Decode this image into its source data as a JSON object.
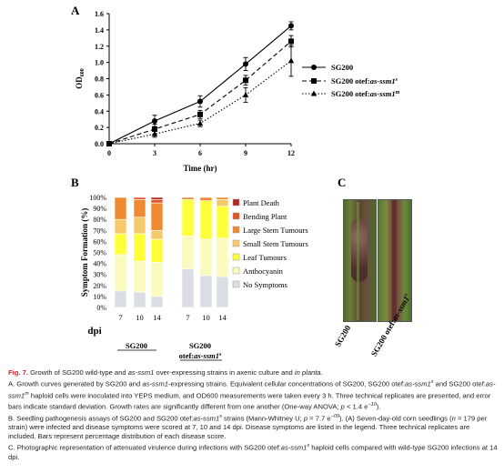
{
  "panels": {
    "a": "A",
    "b": "B",
    "c": "C"
  },
  "colors": {
    "fig_label": "#d2232a"
  },
  "chart_data": [
    {
      "type": "line",
      "ylabel": "OD600",
      "xlabel": "Time (hr)",
      "x": [
        0,
        3,
        6,
        9,
        12
      ],
      "xlim": [
        0,
        12
      ],
      "ylim": [
        0,
        1.6
      ],
      "xticks": [
        "0",
        "3",
        "6",
        "9",
        "12"
      ],
      "yticks": [
        "0.0",
        "0.2",
        "0.4",
        "0.6",
        "0.8",
        "1.0",
        "1.2",
        "1.4",
        "1.6"
      ],
      "grid": false,
      "legend_position": "right",
      "series": [
        {
          "name": "SG200",
          "marker": "circle",
          "line": "solid",
          "values": [
            0.0,
            0.28,
            0.52,
            0.98,
            1.45
          ],
          "error": [
            0.01,
            0.07,
            0.07,
            0.08,
            0.05
          ]
        },
        {
          "name_prefix": "SG200 otef:",
          "name_italic": "as-ssm1",
          "name_sup": "s",
          "marker": "square",
          "line": "dashed",
          "values": [
            0.0,
            0.18,
            0.36,
            0.78,
            1.26
          ],
          "error": [
            0.01,
            0.06,
            0.05,
            0.06,
            0.07
          ]
        },
        {
          "name_prefix": "SG200 otef:",
          "name_italic": "as-ssm1",
          "name_sup": "m",
          "marker": "triangle",
          "line": "dotted",
          "values": [
            0.0,
            0.12,
            0.25,
            0.6,
            1.02
          ],
          "error": [
            0.01,
            0.04,
            0.04,
            0.09,
            0.19
          ]
        }
      ]
    },
    {
      "type": "bar",
      "stacked": true,
      "ylabel": "Symptom Formation (%)",
      "xlabel": "dpi",
      "ylim": [
        0,
        100
      ],
      "yticks": [
        "0%",
        "10%",
        "20%",
        "30%",
        "40%",
        "50%",
        "60%",
        "70%",
        "80%",
        "90%",
        "100%"
      ],
      "categories": [
        "7",
        "10",
        "14",
        "7",
        "10",
        "14"
      ],
      "groups": [
        {
          "label": "SG200",
          "italic": "",
          "sup": ""
        },
        {
          "label": "SG200 otef:",
          "italic": "as-ssm1",
          "sup": "s"
        }
      ],
      "legend_position": "right",
      "series": [
        {
          "name": "No Symptoms",
          "color": "#dadde3",
          "values": [
            15,
            14,
            10,
            35,
            29,
            28
          ]
        },
        {
          "name": "Anthocyanin",
          "color": "#fbfbbe",
          "values": [
            33,
            28,
            31,
            30,
            33,
            35
          ]
        },
        {
          "name": "Leaf Tumours",
          "color": "#ffff3a",
          "values": [
            19,
            25,
            21,
            33,
            35,
            29
          ]
        },
        {
          "name": "Small Stem Tumours",
          "color": "#f6c96b",
          "values": [
            13,
            15,
            8,
            0,
            0,
            6
          ]
        },
        {
          "name": "Large Stem Tumours",
          "color": "#ee8b32",
          "values": [
            20,
            16,
            25,
            2,
            3,
            2
          ]
        },
        {
          "name": "Bending Plant",
          "color": "#e35326",
          "values": [
            0,
            2,
            3,
            0,
            0,
            0
          ]
        },
        {
          "name": "Plant Death",
          "color": "#b22a20",
          "values": [
            0,
            0,
            2,
            0,
            0,
            0
          ]
        }
      ]
    }
  ],
  "photo_labels": {
    "left": "SG200",
    "right_prefix": "SG200 otef:",
    "right_italic": "as-ssm1",
    "right_sup": "s"
  },
  "caption": {
    "fig_label": "Fig. 7.",
    "segments": [
      {
        "p": 0,
        "t": " Growth of SG200 wild-type and "
      },
      {
        "p": 0,
        "t": "as-ssm1",
        "i": true
      },
      {
        "p": 0,
        "t": " over-expressing strains in axenic culture and "
      },
      {
        "p": 0,
        "t": "in planta",
        "i": true
      },
      {
        "p": 0,
        "t": "."
      },
      {
        "p": 1,
        "t": "A. Growth curves generated by SG200 and "
      },
      {
        "p": 1,
        "t": "as-ssm1",
        "i": true
      },
      {
        "p": 1,
        "t": "-expressing strains. Equivalent cellular concentrations of SG200, SG200 otef:"
      },
      {
        "p": 1,
        "t": "as-ssm1",
        "i": true
      },
      {
        "p": 1,
        "t": "s",
        "sup": true
      },
      {
        "p": 1,
        "t": " and SG200 otef:"
      },
      {
        "p": 1,
        "t": "as-ssm1",
        "i": true
      },
      {
        "p": 1,
        "t": "m",
        "sup": true
      },
      {
        "p": 1,
        "t": " haploid cells were inoculated into YEPS medium, and OD600 measurements were taken every 3 h. Three technical replicates are presented, and error bars indicate standard deviation. Growth rates are significantly different from one another (One-way ANOVA; "
      },
      {
        "p": 1,
        "t": "p",
        "i": true
      },
      {
        "p": 1,
        "t": " < 1.4 e"
      },
      {
        "p": 1,
        "t": "−10",
        "sup": true
      },
      {
        "p": 1,
        "t": ")."
      },
      {
        "p": 2,
        "t": "B. Seedling pathogenesis assays of SG200 and SG200 otef:"
      },
      {
        "p": 2,
        "t": "as-ssm1",
        "i": true
      },
      {
        "p": 2,
        "t": "s",
        "sup": true
      },
      {
        "p": 2,
        "t": " strains (Mann-Whitney U; "
      },
      {
        "p": 2,
        "t": "p",
        "i": true
      },
      {
        "p": 2,
        "t": " = 7.7 e"
      },
      {
        "p": 2,
        "t": "−09",
        "sup": true
      },
      {
        "p": 2,
        "t": "). (A) Seven-day-old corn seedlings ("
      },
      {
        "p": 2,
        "t": "n",
        "i": true
      },
      {
        "p": 2,
        "t": " = 179 per strain) were infected and disease symptoms were scored at 7, 10 and 14 dpi. Disease symptoms are listed in the legend. Three technical replicates are included. Bars represent percentage distribution of each disease score."
      },
      {
        "p": 3,
        "t": "C. Photographic representation of attenuated virulence during infections with SG200 otef:"
      },
      {
        "p": 3,
        "t": "as-ssm1",
        "i": true
      },
      {
        "p": 3,
        "t": "s",
        "sup": true
      },
      {
        "p": 3,
        "t": " haploid cells compared with wild-type SG200 infections at 14 dpi."
      }
    ]
  }
}
